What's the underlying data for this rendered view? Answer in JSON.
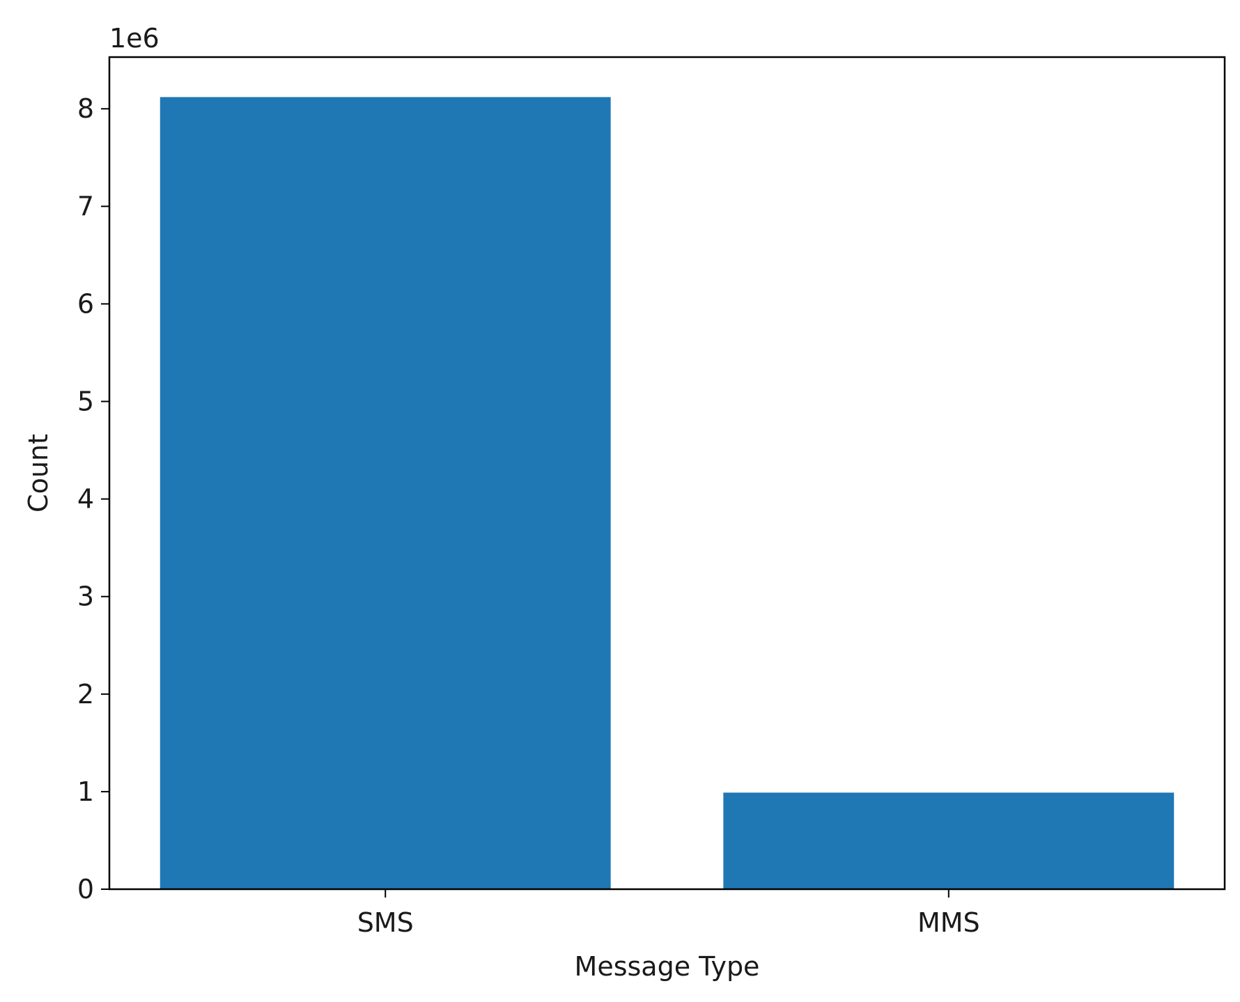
{
  "chart_data": {
    "type": "bar",
    "categories": [
      "SMS",
      "MMS"
    ],
    "values": [
      8120000,
      990000
    ],
    "xlabel": "Message Type",
    "ylabel": "Count",
    "y_offset_label": "1e6",
    "y_tick_scale": 1000000,
    "ylim": [
      0,
      8530000
    ],
    "yticks": [
      0,
      1000000,
      2000000,
      3000000,
      4000000,
      5000000,
      6000000,
      7000000,
      8000000
    ],
    "bar_color": "#1f77b4",
    "grid": false,
    "legend": "none"
  }
}
